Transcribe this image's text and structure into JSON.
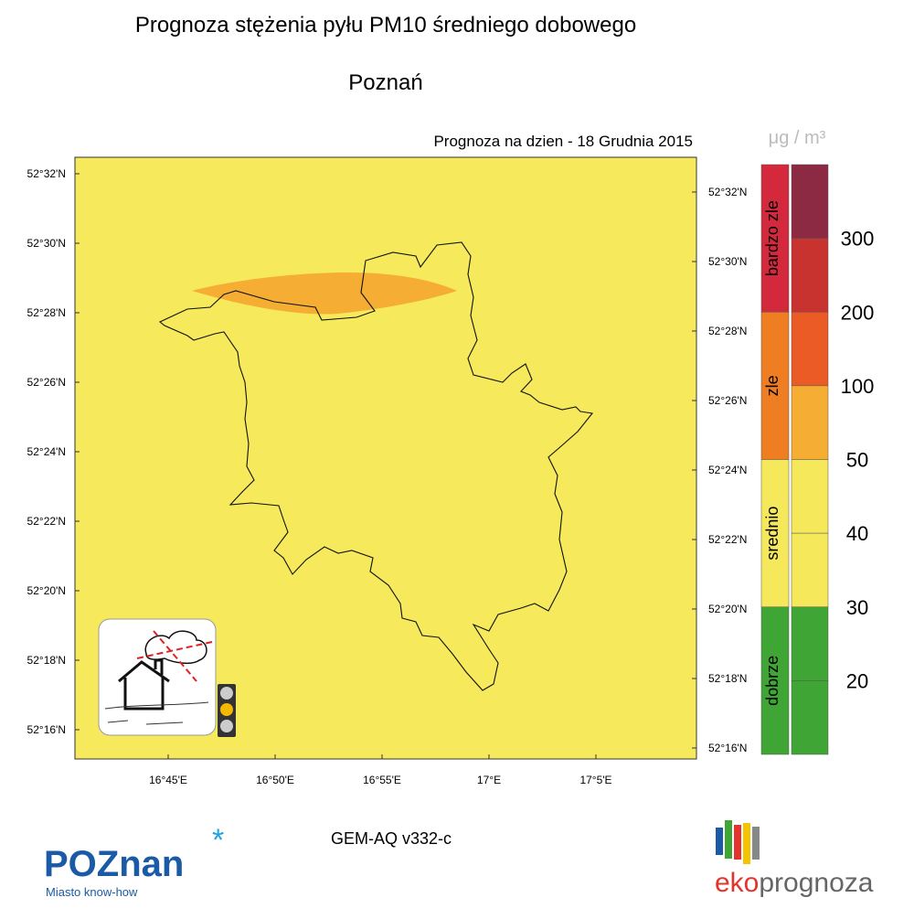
{
  "header": {
    "title": "Prognoza stężenia pyłu PM10 średniego dobowego",
    "subtitle": "Poznań"
  },
  "map": {
    "date_label": "Prognoza na dzien -  18 Grudnia 2015",
    "lat_labels_left": [
      "52°32'N",
      "52°30'N",
      "52°28'N",
      "52°26'N",
      "52°24'N",
      "52°22'N",
      "52°20'N",
      "52°18'N",
      "52°16'N"
    ],
    "lat_labels_right": [
      "52°32'N",
      "52°30'N",
      "52°28'N",
      "52°26'N",
      "52°24'N",
      "52°22'N",
      "52°20'N",
      "52°18'N",
      "52°16'N"
    ],
    "lon_labels": [
      "16°45'E",
      "16°50'E",
      "16°55'E",
      "17°E",
      "17°5'E"
    ]
  },
  "legend": {
    "unit": "μg / m³",
    "categories": [
      {
        "label": "bardzo zle",
        "color": "#d4293d"
      },
      {
        "label": "zle",
        "color": "#ef7d22"
      },
      {
        "label": "srednio",
        "color": "#f5e85a"
      },
      {
        "label": "dobrze",
        "color": "#3fa535"
      }
    ],
    "scale_colors": [
      "#8b2a42",
      "#c8322f",
      "#ea5b25",
      "#f5ad34",
      "#f5e85a",
      "#f5e85a",
      "#3fa535",
      "#3fa535"
    ],
    "thresholds": [
      300,
      200,
      100,
      50,
      40,
      30,
      20
    ]
  },
  "footer": {
    "model": "GEM-AQ v332-c",
    "logo_left": "POZnan",
    "tagline": "Miasto know-how",
    "logo_right_a": "eko",
    "logo_right_b": "prognoza"
  }
}
